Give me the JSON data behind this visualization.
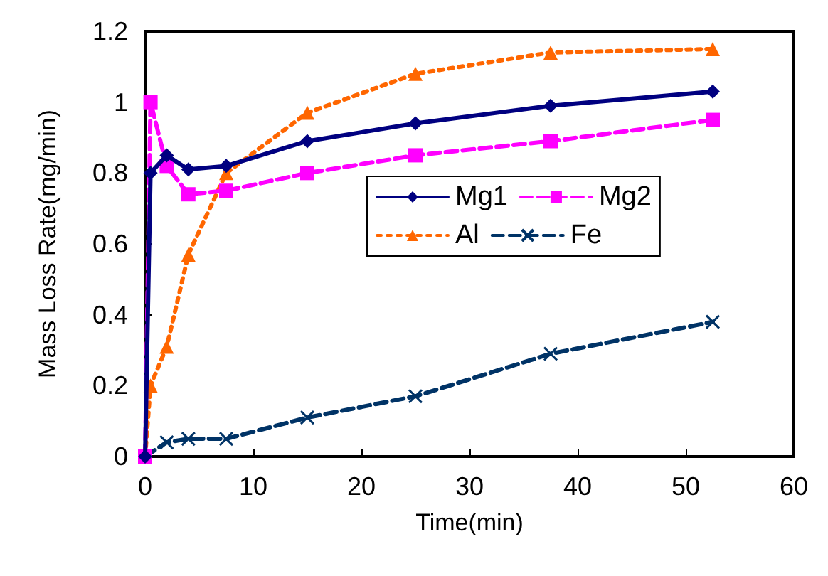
{
  "chart_data": {
    "type": "line",
    "xlabel": "Time(min)",
    "ylabel": "Mass Loss Rate(mg/min)",
    "xlim": [
      0,
      60
    ],
    "xticks": [
      0,
      10,
      20,
      30,
      40,
      50,
      60
    ],
    "ylim": [
      0,
      1.2
    ],
    "yticks": [
      0,
      0.2,
      0.4,
      0.6,
      0.8,
      1,
      1.2
    ],
    "grid": false,
    "legend": "right",
    "series": [
      {
        "name": "Mg1",
        "color": "#000080",
        "marker": "diamond",
        "line_style": "solid",
        "x": [
          0,
          0.5,
          2,
          4,
          7.5,
          15,
          25,
          37.5,
          52.5
        ],
        "values": [
          0,
          0.8,
          0.85,
          0.81,
          0.82,
          0.89,
          0.94,
          0.99,
          1.03
        ]
      },
      {
        "name": "Mg2",
        "color": "#ff00ff",
        "marker": "square",
        "line_style": "dashed",
        "x": [
          0,
          0.5,
          2,
          4,
          7.5,
          15,
          25,
          37.5,
          52.5
        ],
        "values": [
          0,
          1.0,
          0.82,
          0.74,
          0.75,
          0.8,
          0.85,
          0.89,
          0.95
        ]
      },
      {
        "name": "Al",
        "color": "#ff6600",
        "marker": "triangle",
        "line_style": "dotted",
        "x": [
          0,
          0.5,
          2,
          4,
          7.5,
          15,
          25,
          37.5,
          52.5
        ],
        "values": [
          0,
          0.2,
          0.31,
          0.57,
          0.8,
          0.97,
          1.08,
          1.14,
          1.15
        ]
      },
      {
        "name": "Fe",
        "color": "#003366",
        "marker": "cross",
        "line_style": "dashed",
        "x": [
          0,
          2,
          4,
          7.5,
          15,
          25,
          37.5,
          52.5
        ],
        "values": [
          0,
          0.04,
          0.05,
          0.05,
          0.11,
          0.17,
          0.29,
          0.38
        ]
      }
    ]
  }
}
